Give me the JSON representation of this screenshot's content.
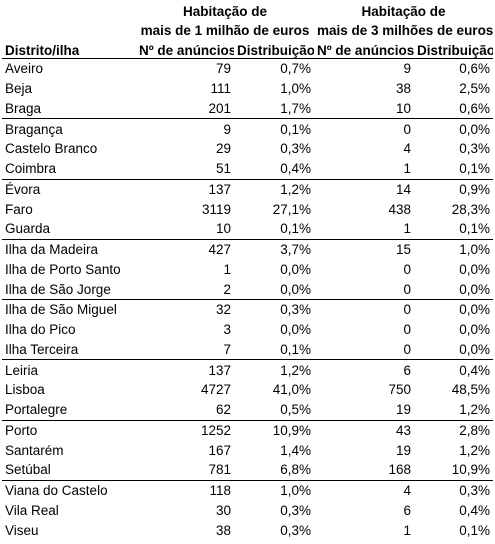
{
  "table": {
    "header": {
      "group1_line1": "Habitação de",
      "group1_line2": "mais de 1 milhão de euros",
      "group2_line1": "Habitação de",
      "group2_line2": "mais de 3 milhões de euros",
      "col_name": "Distrito/ilha",
      "col_n1": "Nº de anúncios",
      "col_d1": "Distribuição",
      "col_n2": "Nº de anúncios",
      "col_d2": "Distribuição"
    },
    "rows": [
      {
        "name": "Aveiro",
        "n1": "79",
        "d1": "0,7%",
        "n2": "9",
        "d2": "0,6%",
        "group_end": false
      },
      {
        "name": "Beja",
        "n1": "111",
        "d1": "1,0%",
        "n2": "38",
        "d2": "2,5%",
        "group_end": false
      },
      {
        "name": "Braga",
        "n1": "201",
        "d1": "1,7%",
        "n2": "10",
        "d2": "0,6%",
        "group_end": true
      },
      {
        "name": "Bragança",
        "n1": "9",
        "d1": "0,1%",
        "n2": "0",
        "d2": "0,0%",
        "group_end": false
      },
      {
        "name": "Castelo Branco",
        "n1": "29",
        "d1": "0,3%",
        "n2": "4",
        "d2": "0,3%",
        "group_end": false
      },
      {
        "name": "Coimbra",
        "n1": "51",
        "d1": "0,4%",
        "n2": "1",
        "d2": "0,1%",
        "group_end": true
      },
      {
        "name": "Évora",
        "n1": "137",
        "d1": "1,2%",
        "n2": "14",
        "d2": "0,9%",
        "group_end": false
      },
      {
        "name": "Faro",
        "n1": "3119",
        "d1": "27,1%",
        "n2": "438",
        "d2": "28,3%",
        "group_end": false
      },
      {
        "name": "Guarda",
        "n1": "10",
        "d1": "0,1%",
        "n2": "1",
        "d2": "0,1%",
        "group_end": true
      },
      {
        "name": "Ilha da Madeira",
        "n1": "427",
        "d1": "3,7%",
        "n2": "15",
        "d2": "1,0%",
        "group_end": false
      },
      {
        "name": "Ilha de Porto Santo",
        "n1": "1",
        "d1": "0,0%",
        "n2": "0",
        "d2": "0,0%",
        "group_end": false
      },
      {
        "name": "Ilha de São Jorge",
        "n1": "2",
        "d1": "0,0%",
        "n2": "0",
        "d2": "0,0%",
        "group_end": true
      },
      {
        "name": "Ilha de São Miguel",
        "n1": "32",
        "d1": "0,3%",
        "n2": "0",
        "d2": "0,0%",
        "group_end": false
      },
      {
        "name": "Ilha do Pico",
        "n1": "3",
        "d1": "0,0%",
        "n2": "0",
        "d2": "0,0%",
        "group_end": false
      },
      {
        "name": "Ilha Terceira",
        "n1": "7",
        "d1": "0,1%",
        "n2": "0",
        "d2": "0,0%",
        "group_end": true
      },
      {
        "name": "Leiria",
        "n1": "137",
        "d1": "1,2%",
        "n2": "6",
        "d2": "0,4%",
        "group_end": false
      },
      {
        "name": "Lisboa",
        "n1": "4727",
        "d1": "41,0%",
        "n2": "750",
        "d2": "48,5%",
        "group_end": false
      },
      {
        "name": "Portalegre",
        "n1": "62",
        "d1": "0,5%",
        "n2": "19",
        "d2": "1,2%",
        "group_end": true
      },
      {
        "name": "Porto",
        "n1": "1252",
        "d1": "10,9%",
        "n2": "43",
        "d2": "2,8%",
        "group_end": false
      },
      {
        "name": "Santarém",
        "n1": "167",
        "d1": "1,4%",
        "n2": "19",
        "d2": "1,2%",
        "group_end": false
      },
      {
        "name": "Setúbal",
        "n1": "781",
        "d1": "6,8%",
        "n2": "168",
        "d2": "10,9%",
        "group_end": true
      },
      {
        "name": "Viana do Castelo",
        "n1": "118",
        "d1": "1,0%",
        "n2": "4",
        "d2": "0,3%",
        "group_end": false
      },
      {
        "name": "Vila Real",
        "n1": "30",
        "d1": "0,3%",
        "n2": "6",
        "d2": "0,4%",
        "group_end": false
      },
      {
        "name": "Viseu",
        "n1": "38",
        "d1": "0,3%",
        "n2": "1",
        "d2": "0,1%",
        "group_end": false
      }
    ]
  }
}
